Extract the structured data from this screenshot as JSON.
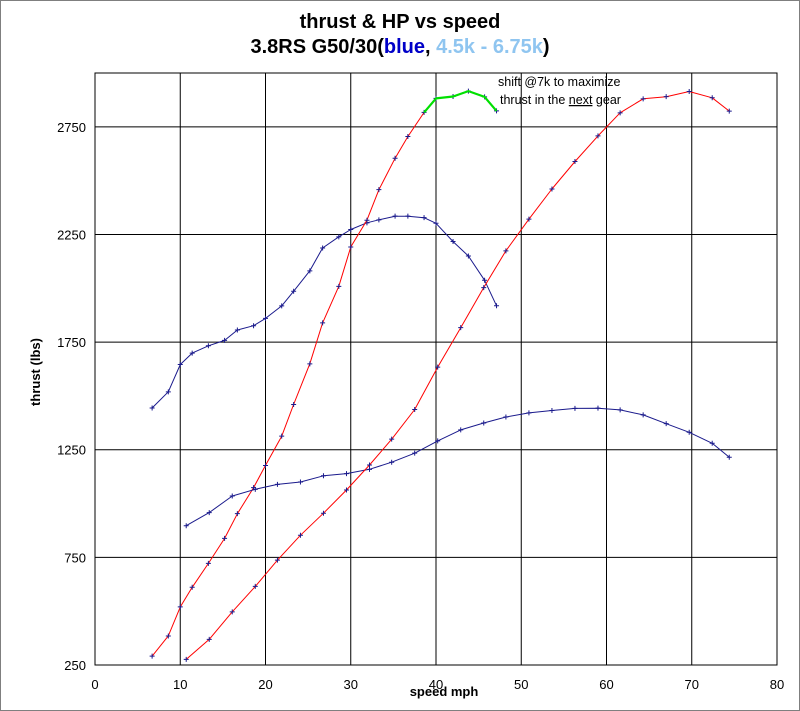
{
  "title": {
    "line1": "thrust & HP vs speed",
    "line2_prefix": "3.8RS G50/30(",
    "line2_blue": "blue",
    "line2_sep": ", ",
    "line2_light": "4.5k - 6.75k",
    "line2_suffix": ")"
  },
  "colors": {
    "blue_series": "#1a1a8c",
    "red_series": "#ff0000",
    "highlight": "#00e000",
    "title_blue": "#0000c8",
    "title_light": "#8fc5f0",
    "grid": "#000000"
  },
  "chart_data": {
    "type": "line",
    "title": "thrust & HP vs speed",
    "subtitle": "3.8RS G50/30(blue, 4.5k - 6.75k)",
    "xlabel": "speed mph",
    "ylabel": "thrust (lbs)",
    "xlim": [
      0,
      80
    ],
    "ylim": [
      250,
      3000
    ],
    "x_ticks": [
      0,
      10,
      20,
      30,
      40,
      50,
      60,
      70,
      80
    ],
    "y_ticks": [
      250,
      750,
      1250,
      1750,
      2250,
      2750
    ],
    "grid": true,
    "annotation": {
      "line1": "shift @7k to maximize",
      "line2_prefix": "thrust in the ",
      "line2_underlined": "next",
      "line2_suffix": " gear"
    },
    "series": [
      {
        "color": "blue",
        "x": [
          6.7,
          8.6,
          10.0,
          11.4,
          13.3,
          15.2,
          16.7,
          18.6,
          20.0,
          21.9,
          23.3,
          25.2,
          26.7,
          28.6,
          30.0,
          31.9,
          33.3,
          35.2,
          36.7,
          38.6,
          40.0,
          42.0,
          43.8,
          45.7,
          47.1
        ],
        "y": [
          1444,
          1519,
          1646,
          1699,
          1733,
          1758,
          1806,
          1826,
          1860,
          1918,
          1986,
          2081,
          2187,
          2239,
          2273,
          2304,
          2318,
          2335,
          2335,
          2328,
          2302,
          2217,
          2150,
          2037,
          1919
        ]
      },
      {
        "color": "red",
        "x": [
          6.7,
          8.6,
          10.0,
          11.4,
          13.3,
          15.2,
          16.7,
          18.6,
          20.0,
          21.9,
          23.3,
          25.2,
          26.7,
          28.6,
          30.0,
          31.9,
          33.3,
          35.2,
          36.7,
          38.6,
          40.0,
          42.0,
          43.8,
          45.7,
          47.1
        ],
        "y": [
          291,
          385,
          520,
          611,
          722,
          838,
          953,
          1074,
          1177,
          1313,
          1460,
          1649,
          1839,
          2009,
          2192,
          2316,
          2458,
          2604,
          2705,
          2817,
          2882,
          2891,
          2916,
          2889,
          2824
        ]
      },
      {
        "color": "blue",
        "x": [
          10.7,
          13.4,
          16.1,
          18.8,
          21.4,
          24.1,
          26.8,
          29.5,
          32.2,
          34.8,
          37.5,
          40.2,
          42.9,
          45.6,
          48.2,
          50.9,
          53.6,
          56.3,
          59.0,
          61.6,
          64.3,
          67.0,
          69.7,
          72.4,
          74.4
        ],
        "y": [
          897,
          958,
          1035,
          1066,
          1089,
          1100,
          1129,
          1139,
          1159,
          1192,
          1234,
          1291,
          1342,
          1374,
          1402,
          1421,
          1432,
          1442,
          1443,
          1435,
          1412,
          1371,
          1331,
          1280,
          1215
        ]
      },
      {
        "color": "red",
        "x": [
          10.7,
          13.4,
          16.1,
          18.8,
          21.4,
          24.1,
          26.8,
          29.5,
          32.2,
          34.8,
          37.5,
          40.2,
          42.9,
          45.6,
          48.2,
          50.9,
          53.6,
          56.3,
          59.0,
          61.6,
          64.3,
          67.0,
          69.7,
          72.4,
          74.4
        ],
        "y": [
          276,
          369,
          497,
          615,
          737,
          853,
          955,
          1063,
          1179,
          1299,
          1437,
          1634,
          1817,
          2003,
          2174,
          2321,
          2461,
          2589,
          2708,
          2815,
          2880,
          2890,
          2914,
          2885,
          2823
        ]
      },
      {
        "color": "green",
        "x": [
          38.6,
          40.0,
          42.0,
          43.8,
          45.7,
          47.1
        ],
        "y": [
          2817,
          2882,
          2891,
          2916,
          2889,
          2824
        ]
      }
    ]
  }
}
